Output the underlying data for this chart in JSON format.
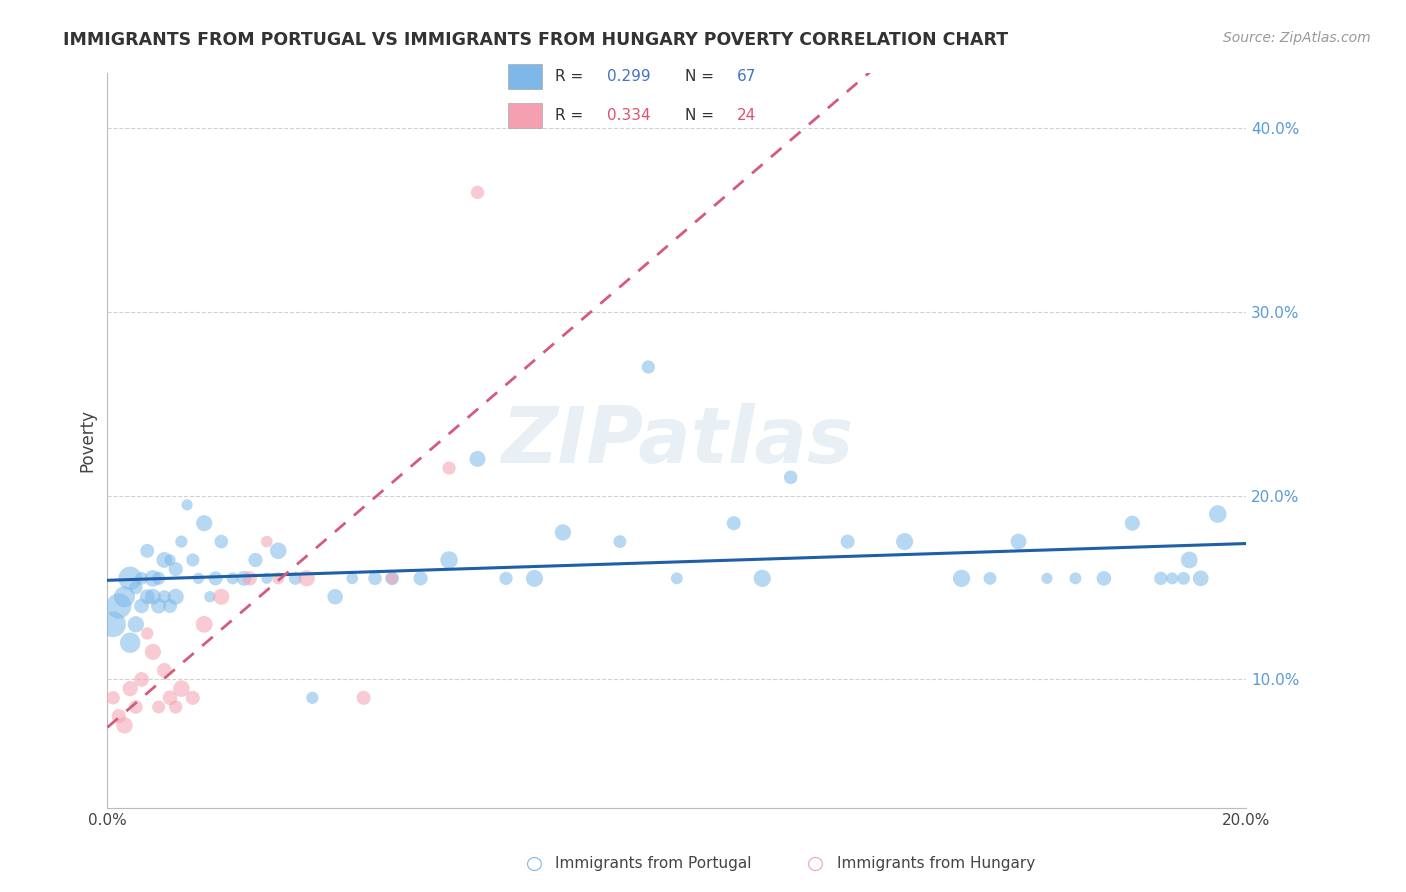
{
  "title": "IMMIGRANTS FROM PORTUGAL VS IMMIGRANTS FROM HUNGARY POVERTY CORRELATION CHART",
  "source": "Source: ZipAtlas.com",
  "ylabel": "Poverty",
  "xlim": [
    0.0,
    0.2
  ],
  "ylim": [
    0.03,
    0.43
  ],
  "y_ticks": [
    0.1,
    0.2,
    0.3,
    0.4
  ],
  "y_tick_labels": [
    "10.0%",
    "20.0%",
    "30.0%",
    "40.0%"
  ],
  "grid_color": "#cccccc",
  "background_color": "#ffffff",
  "watermark": "ZIPatlas",
  "color_portugal": "#7db8e8",
  "color_hungary": "#f4a0b0",
  "line_color_portugal": "#1f5fa6",
  "line_color_hungary": "#d45c7a",
  "portugal_x": [
    0.001,
    0.002,
    0.003,
    0.004,
    0.004,
    0.005,
    0.005,
    0.006,
    0.006,
    0.007,
    0.007,
    0.008,
    0.008,
    0.009,
    0.009,
    0.01,
    0.01,
    0.011,
    0.011,
    0.012,
    0.012,
    0.013,
    0.014,
    0.015,
    0.016,
    0.017,
    0.018,
    0.019,
    0.02,
    0.022,
    0.024,
    0.026,
    0.028,
    0.03,
    0.033,
    0.036,
    0.04,
    0.043,
    0.047,
    0.05,
    0.055,
    0.06,
    0.065,
    0.07,
    0.075,
    0.08,
    0.09,
    0.095,
    0.1,
    0.11,
    0.115,
    0.12,
    0.13,
    0.14,
    0.15,
    0.155,
    0.16,
    0.165,
    0.17,
    0.175,
    0.18,
    0.185,
    0.187,
    0.189,
    0.19,
    0.192,
    0.195
  ],
  "portugal_y": [
    0.13,
    0.14,
    0.145,
    0.12,
    0.155,
    0.13,
    0.15,
    0.14,
    0.155,
    0.145,
    0.17,
    0.145,
    0.155,
    0.14,
    0.155,
    0.145,
    0.165,
    0.14,
    0.165,
    0.145,
    0.16,
    0.175,
    0.195,
    0.165,
    0.155,
    0.185,
    0.145,
    0.155,
    0.175,
    0.155,
    0.155,
    0.165,
    0.155,
    0.17,
    0.155,
    0.09,
    0.145,
    0.155,
    0.155,
    0.155,
    0.155,
    0.165,
    0.22,
    0.155,
    0.155,
    0.18,
    0.175,
    0.27,
    0.155,
    0.185,
    0.155,
    0.21,
    0.175,
    0.175,
    0.155,
    0.155,
    0.175,
    0.155,
    0.155,
    0.155,
    0.185,
    0.155,
    0.155,
    0.155,
    0.165,
    0.155,
    0.19
  ],
  "hungary_x": [
    0.001,
    0.002,
    0.003,
    0.004,
    0.005,
    0.006,
    0.007,
    0.008,
    0.009,
    0.01,
    0.011,
    0.012,
    0.013,
    0.015,
    0.017,
    0.02,
    0.025,
    0.028,
    0.03,
    0.035,
    0.045,
    0.05,
    0.06,
    0.065
  ],
  "hungary_y": [
    0.09,
    0.08,
    0.075,
    0.095,
    0.085,
    0.1,
    0.125,
    0.115,
    0.085,
    0.105,
    0.09,
    0.085,
    0.095,
    0.09,
    0.13,
    0.145,
    0.155,
    0.175,
    0.155,
    0.155,
    0.09,
    0.155,
    0.215,
    0.365
  ]
}
